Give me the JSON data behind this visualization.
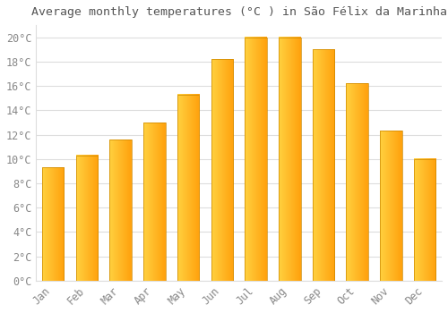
{
  "title": "Average monthly temperatures (°C ) in São Félix da Marinha",
  "months": [
    "Jan",
    "Feb",
    "Mar",
    "Apr",
    "May",
    "Jun",
    "Jul",
    "Aug",
    "Sep",
    "Oct",
    "Nov",
    "Dec"
  ],
  "values": [
    9.3,
    10.3,
    11.6,
    13.0,
    15.3,
    18.2,
    20.0,
    20.0,
    19.0,
    16.2,
    12.3,
    10.0
  ],
  "bar_color_left": "#FFD060",
  "bar_color_right": "#FFA000",
  "bar_edge_color": "#CC8800",
  "background_color": "#FFFFFF",
  "grid_color": "#DDDDDD",
  "text_color": "#888888",
  "title_color": "#555555",
  "ylim": [
    0,
    21
  ],
  "yticks": [
    0,
    2,
    4,
    6,
    8,
    10,
    12,
    14,
    16,
    18,
    20
  ],
  "title_fontsize": 9.5,
  "tick_fontsize": 8.5,
  "bar_width": 0.65
}
